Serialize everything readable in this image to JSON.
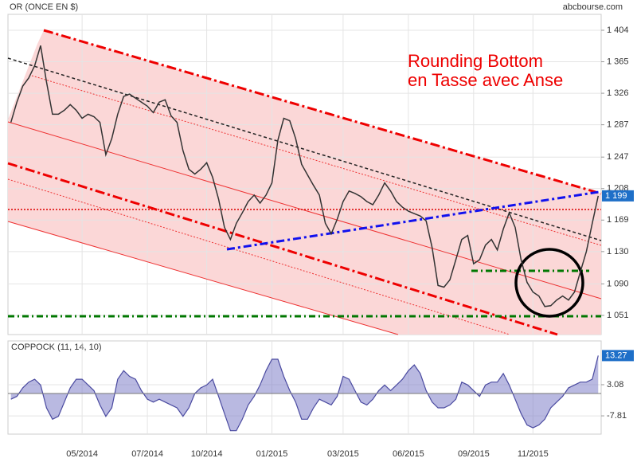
{
  "chart_data": [
    {
      "type": "line",
      "title": "OR (ONCE EN $)",
      "source": "abcbourse.com",
      "annotation": [
        "Rounding Bottom",
        "en Tasse avec Anse"
      ],
      "categories": [
        null,
        null,
        null,
        null,
        null,
        null,
        null,
        null,
        null,
        null,
        null,
        null,
        "05/2014",
        null,
        null,
        null,
        null,
        null,
        null,
        null,
        null,
        null,
        null,
        "07/2014",
        null,
        null,
        null,
        null,
        null,
        null,
        null,
        null,
        null,
        "10/2014",
        null,
        null,
        null,
        null,
        null,
        null,
        null,
        null,
        null,
        null,
        "01/2015",
        null,
        null,
        null,
        null,
        null,
        null,
        null,
        null,
        null,
        null,
        null,
        "03/2015",
        null,
        null,
        null,
        null,
        null,
        null,
        null,
        null,
        null,
        null,
        "06/2015",
        null,
        null,
        null,
        null,
        null,
        null,
        null,
        null,
        null,
        null,
        "09/2015",
        null,
        null,
        null,
        null,
        null,
        null,
        null,
        null,
        null,
        "11/2015",
        null,
        null,
        null,
        null,
        null,
        null,
        null,
        null,
        null,
        null,
        null
      ],
      "series": [
        {
          "name": "OR",
          "color": "#333333",
          "values": [
            1290,
            1315,
            1335,
            1345,
            1360,
            1385,
            1340,
            1300,
            1300,
            1305,
            1312,
            1305,
            1295,
            1300,
            1297,
            1290,
            1250,
            1270,
            1300,
            1322,
            1325,
            1320,
            1315,
            1310,
            1302,
            1315,
            1318,
            1298,
            1290,
            1255,
            1232,
            1226,
            1232,
            1240,
            1222,
            1195,
            1160,
            1145,
            1165,
            1178,
            1192,
            1200,
            1190,
            1200,
            1215,
            1268,
            1295,
            1292,
            1270,
            1238,
            1225,
            1212,
            1200,
            1165,
            1152,
            1170,
            1192,
            1205,
            1202,
            1198,
            1192,
            1188,
            1200,
            1215,
            1205,
            1192,
            1185,
            1180,
            1177,
            1174,
            1168,
            1135,
            1088,
            1086,
            1095,
            1120,
            1145,
            1150,
            1115,
            1120,
            1138,
            1145,
            1132,
            1158,
            1178,
            1160,
            1120,
            1092,
            1080,
            1075,
            1062,
            1063,
            1070,
            1075,
            1070,
            1080,
            1105,
            1130,
            1165,
            1199
          ]
        }
      ],
      "last_label": {
        "value": 1199,
        "label": "1 199"
      },
      "ylim": [
        1027.3,
        1423.7
      ],
      "yticks": [
        {
          "value": 1051,
          "label": "1 051"
        },
        {
          "value": 1090,
          "label": "1 090"
        },
        {
          "value": 1130,
          "label": "1 130"
        },
        {
          "value": 1169,
          "label": "1 169"
        },
        {
          "value": 1208,
          "label": "1 208"
        },
        {
          "value": 1247,
          "label": "1 247"
        },
        {
          "value": 1287,
          "label": "1 287"
        },
        {
          "value": 1326,
          "label": "1 326"
        },
        {
          "value": 1365,
          "label": "1 365"
        },
        {
          "value": 1404,
          "label": "1 404"
        }
      ],
      "grid": true
    },
    {
      "type": "area",
      "title": "COPPOCK (11, 14, 10)",
      "series": [
        {
          "name": "COPPOCK",
          "color": "#8080c8",
          "values": [
            -2,
            -1,
            2,
            4,
            5,
            3,
            -5,
            -9,
            -8,
            -3,
            2,
            5,
            5,
            3,
            1,
            -4,
            -8,
            -5,
            5,
            8,
            6,
            5,
            1,
            -2,
            -3,
            -2,
            -3,
            -4,
            -5,
            -8,
            -5,
            0,
            2,
            3,
            5,
            -1,
            -7,
            -13,
            -13,
            -9,
            -4,
            -1,
            3,
            8,
            12,
            12,
            6,
            1,
            -3,
            -9,
            -9,
            -5,
            -2,
            -3,
            -4,
            -1,
            6,
            5,
            1,
            -3,
            -4,
            -2,
            1,
            3,
            1,
            3,
            5,
            8,
            10,
            7,
            1,
            -3,
            -5,
            -5,
            -4,
            -2,
            4,
            3,
            1,
            -1,
            3,
            4,
            4,
            7,
            3,
            -2,
            -7,
            -11,
            -12,
            -11,
            -9,
            -5,
            -3,
            -1,
            2,
            3,
            4,
            4,
            5,
            13.27
          ]
        }
      ],
      "ylim": [
        -14.2,
        18.4
      ],
      "yticks": [
        -7.81,
        3.08
      ],
      "last_label": 13.27,
      "grid": true
    }
  ]
}
